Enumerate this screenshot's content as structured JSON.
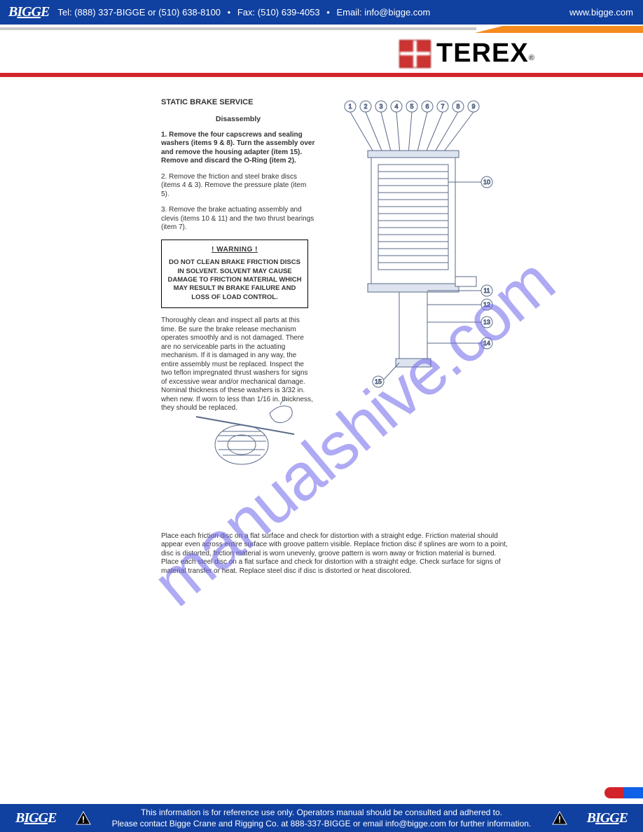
{
  "header": {
    "brand": "BIGGE",
    "tel_label": "Tel: ",
    "tel": "(888) 337-BIGGE or (510) 638-8100",
    "fax_label": "Fax: ",
    "fax": "(510) 639-4053",
    "email_label": "Email: ",
    "email": "info@bigge.com",
    "url": "www.bigge.com"
  },
  "logo": {
    "terex": "TEREX",
    "reg": "®"
  },
  "doc": {
    "title": "STATIC BRAKE SERVICE",
    "subtitle": "Disassembly",
    "p1": "1. Remove the four capscrews and sealing washers (items 9 & 8). Turn the assembly over and remove the housing adapter (item 15). Remove and discard the O-Ring (item 2).",
    "p2": "2. Remove the friction and steel brake discs (items 4 & 3). Remove the pressure plate (item 5).",
    "p3": "3. Remove the brake actuating assembly and clevis (items 10 & 11) and the two thrust bearings (item 7).",
    "warn_head": "! WARNING !",
    "warn_body": "DO NOT CLEAN BRAKE FRICTION DISCS IN SOLVENT. SOLVENT MAY CAUSE DAMAGE TO FRICTION MATERIAL WHICH MAY RESULT IN BRAKE FAILURE AND LOSS OF LOAD CONTROL.",
    "p4": "Thoroughly clean and inspect all parts at this time. Be sure the brake release mechanism operates smoothly and is not damaged. There are no serviceable parts in the actuating mechanism. If it is damaged in any way, the entire assembly must be replaced. Inspect the two teflon impregnated thrust washers for signs of excessive wear and/or mechanical damage. Nominal thickness of these washers is 3/32 in. when new. If worn to less than 1/16 in. thickness, they should be replaced.",
    "p5": "Place each friction disc on a flat surface and check for distortion with a straight edge. Friction material should appear even across entire surface with groove pattern visible. Replace friction disc if splines are worn to a point, disc is distorted, friction material is worn unevenly, groove pattern is worn away or friction material is burned. Place each steel disc on a flat surface and check for distortion with a straight edge. Check surface for signs of material transfer or heat. Replace steel disc if disc is distorted or heat discolored."
  },
  "diagram": {
    "top_callouts": [
      "1",
      "2",
      "3",
      "4",
      "5",
      "6",
      "7",
      "8",
      "9"
    ],
    "side_callouts": [
      "10",
      "11",
      "12",
      "13",
      "14"
    ],
    "bottom_callout": "15",
    "stroke": "#5a6a8a",
    "fill": "#ffffff"
  },
  "watermark": "manualshive.com",
  "footer": {
    "line1": "This information is for reference use only. Operators manual should be consulted and adhered to.",
    "line2": "Please contact Bigge Crane and Rigging Co. at 888-337-BIGGE or email info@bigge.com for further information."
  },
  "colors": {
    "banner": "#1040a0",
    "red": "#d2232a",
    "orange": "#f68b1f",
    "watermark": "rgba(110,100,235,.55)"
  }
}
